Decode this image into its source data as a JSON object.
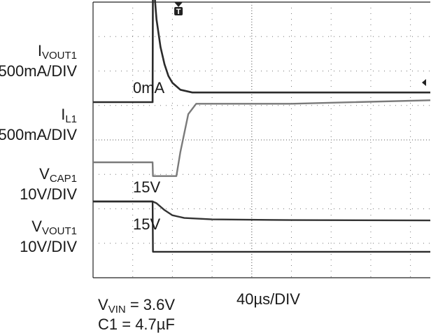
{
  "chart_data": {
    "type": "line",
    "title": "",
    "channels": [
      {
        "main": "I",
        "sub": "VOUT1",
        "scale": "500mA/DIV",
        "level_label": "0mA",
        "points": [
          [
            0,
            0.0
          ],
          [
            1.5,
            0.0
          ],
          [
            1.51,
            1.85
          ],
          [
            1.6,
            1.2
          ],
          [
            1.7,
            0.8
          ],
          [
            1.8,
            0.55
          ],
          [
            1.9,
            0.38
          ],
          [
            2.0,
            0.28
          ],
          [
            2.2,
            0.18
          ],
          [
            2.5,
            0.14
          ],
          [
            5,
            0.14
          ],
          [
            8.5,
            0.14
          ]
        ]
      },
      {
        "main": "I",
        "sub": "L1",
        "scale": "500mA/DIV",
        "level_label": "",
        "points": [
          [
            0,
            0.0
          ],
          [
            1.5,
            0.0
          ],
          [
            1.51,
            -0.2
          ],
          [
            2.1,
            -0.2
          ],
          [
            2.2,
            0.15
          ],
          [
            2.4,
            0.7
          ],
          [
            2.6,
            0.85
          ],
          [
            5,
            0.85
          ],
          [
            8.5,
            0.9
          ]
        ]
      },
      {
        "main": "V",
        "sub": "CAP1",
        "scale": "10V/DIV",
        "level_label": "15V",
        "points": [
          [
            0,
            15.0
          ],
          [
            1.5,
            15.0
          ],
          [
            1.6,
            14.5
          ],
          [
            1.8,
            12.5
          ],
          [
            2.0,
            11.0
          ],
          [
            2.3,
            10.2
          ],
          [
            3,
            9.8
          ],
          [
            5,
            9.6
          ],
          [
            8.5,
            9.5
          ]
        ]
      },
      {
        "main": "V",
        "sub": "VOUT1",
        "scale": "10V/DIV",
        "level_label": "15V",
        "points": [
          [
            0,
            15.0
          ],
          [
            1.5,
            15.0
          ],
          [
            1.51,
            0.4
          ],
          [
            8.5,
            0.4
          ]
        ]
      }
    ],
    "time_scale": "40µs/DIV",
    "conditions": [
      {
        "main": "V",
        "sub": "VIN",
        "rest": " = 3.6V"
      },
      {
        "main": "C1 = 4.7µF",
        "sub": "",
        "rest": ""
      }
    ],
    "trigger_marker": "T",
    "grid": true
  }
}
